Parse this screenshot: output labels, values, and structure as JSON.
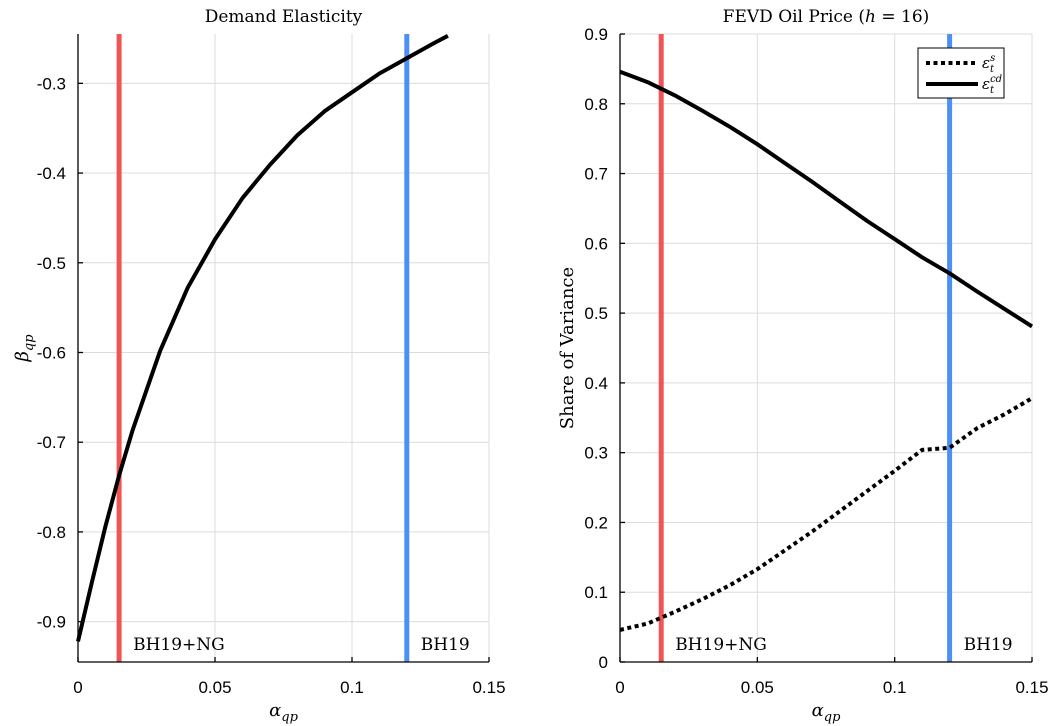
{
  "colors": {
    "ng_line": "#f05454",
    "bh19_line": "#4c8ff5",
    "curve": "#000000"
  },
  "chart_data": [
    {
      "type": "line",
      "title": "Demand Elasticity",
      "xlabel": "α_qp",
      "ylabel": "β_qp",
      "xlim": [
        0,
        0.15
      ],
      "ylim": [
        -0.945,
        -0.245
      ],
      "xticks": [
        0,
        0.05,
        0.1,
        0.15
      ],
      "xtick_labels": [
        "0",
        "0.05",
        "0.1",
        "0.15"
      ],
      "yticks": [
        -0.9,
        -0.8,
        -0.7,
        -0.6,
        -0.5,
        -0.4,
        -0.3
      ],
      "ytick_labels": [
        "-0.9",
        "-0.8",
        "-0.7",
        "-0.6",
        "-0.5",
        "-0.4",
        "-0.3"
      ],
      "grid": true,
      "series": [
        {
          "style": "solid",
          "x": [
            0,
            0.005,
            0.01,
            0.015,
            0.02,
            0.03,
            0.04,
            0.05,
            0.06,
            0.07,
            0.08,
            0.09,
            0.1,
            0.11,
            0.12,
            0.13,
            0.135
          ],
          "y": [
            -0.922,
            -0.857,
            -0.794,
            -0.737,
            -0.686,
            -0.598,
            -0.528,
            -0.474,
            -0.428,
            -0.391,
            -0.358,
            -0.331,
            -0.31,
            -0.289,
            -0.272,
            -0.255,
            -0.247
          ]
        }
      ],
      "vlines": [
        {
          "x": 0.015,
          "label": "BH19+NG",
          "color": "#f05454"
        },
        {
          "x": 0.12,
          "label": "BH19",
          "color": "#4c8ff5"
        }
      ]
    },
    {
      "type": "line",
      "title": "FEVD Oil Price (h = 16)",
      "title_parts": [
        "FEVD Oil Price (",
        "h",
        " = 16)"
      ],
      "xlabel": "α_qp",
      "ylabel": "Share of Variance",
      "xlim": [
        0,
        0.15
      ],
      "ylim": [
        0,
        0.9
      ],
      "xticks": [
        0,
        0.05,
        0.1,
        0.15
      ],
      "xtick_labels": [
        "0",
        "0.05",
        "0.1",
        "0.15"
      ],
      "yticks": [
        0,
        0.1,
        0.2,
        0.3,
        0.4,
        0.5,
        0.6,
        0.7,
        0.8,
        0.9
      ],
      "ytick_labels": [
        "0",
        "0.1",
        "0.2",
        "0.3",
        "0.4",
        "0.5",
        "0.6",
        "0.7",
        "0.8",
        "0.9"
      ],
      "grid": true,
      "legend_position": "top-right",
      "series": [
        {
          "name": "ε_t^s",
          "legend_base": "ε",
          "legend_sub": "t",
          "legend_sup": "s",
          "style": "dotted",
          "x": [
            0,
            0.01,
            0.02,
            0.03,
            0.04,
            0.05,
            0.06,
            0.07,
            0.08,
            0.09,
            0.1,
            0.11,
            0.12,
            0.13,
            0.14,
            0.15
          ],
          "y": [
            0.046,
            0.055,
            0.072,
            0.09,
            0.11,
            0.133,
            0.16,
            0.187,
            0.216,
            0.245,
            0.274,
            0.304,
            0.307,
            0.335,
            0.355,
            0.378
          ]
        },
        {
          "name": "ε_t^cd",
          "legend_base": "ε",
          "legend_sub": "t",
          "legend_sup": "cd",
          "style": "solid",
          "x": [
            0,
            0.01,
            0.02,
            0.03,
            0.04,
            0.05,
            0.06,
            0.07,
            0.08,
            0.09,
            0.1,
            0.11,
            0.12,
            0.13,
            0.14,
            0.15
          ],
          "y": [
            0.846,
            0.831,
            0.812,
            0.79,
            0.767,
            0.742,
            0.715,
            0.688,
            0.66,
            0.632,
            0.606,
            0.58,
            0.557,
            0.531,
            0.506,
            0.481
          ]
        }
      ],
      "vlines": [
        {
          "x": 0.015,
          "label": "BH19+NG",
          "color": "#f05454"
        },
        {
          "x": 0.12,
          "label": "BH19",
          "color": "#4c8ff5"
        }
      ]
    }
  ]
}
